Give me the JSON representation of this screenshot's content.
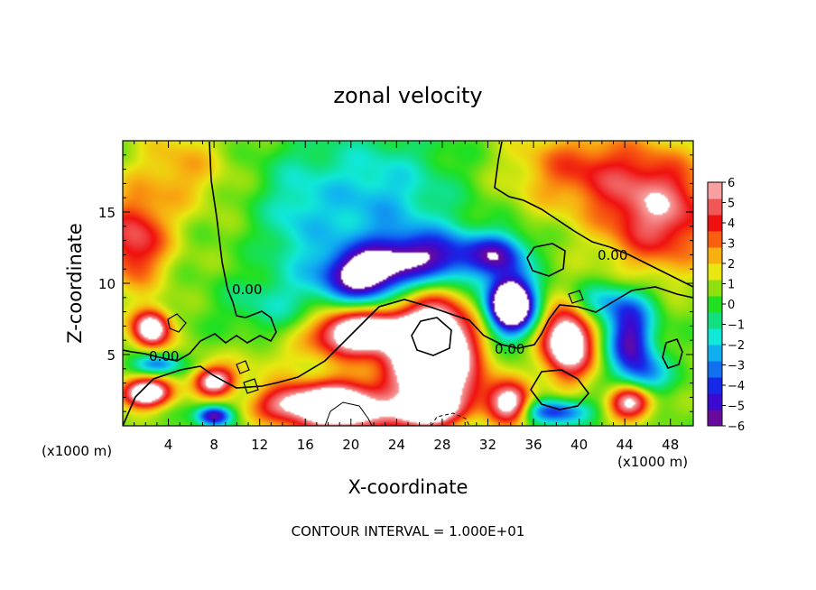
{
  "chart_data": {
    "type": "heatmap",
    "title": "zonal velocity",
    "xlabel": "X-coordinate",
    "ylabel": "Z-coordinate",
    "x_unit_left": "(x1000 m)",
    "x_unit_right": "(x1000 m)",
    "xlim": [
      0,
      50
    ],
    "ylim": [
      0,
      20
    ],
    "x_ticks": [
      4,
      8,
      12,
      16,
      20,
      24,
      28,
      32,
      36,
      40,
      44,
      48
    ],
    "x_tick_labels": [
      "4",
      "8",
      "12",
      "16",
      "20",
      "24",
      "28",
      "32",
      "36",
      "40",
      "44",
      "48"
    ],
    "y_ticks": [
      5,
      10,
      15
    ],
    "y_tick_labels": [
      "5",
      "10",
      "15"
    ],
    "colorbar": {
      "min": -6,
      "max": 6,
      "ticks": [
        6,
        5,
        4,
        3,
        2,
        1,
        0,
        -1,
        -2,
        -3,
        -4,
        -5,
        -6
      ],
      "tick_labels": [
        "6",
        "5",
        "4",
        "3",
        "2",
        "1",
        "0",
        "−1",
        "−2",
        "−3",
        "−4",
        "−5",
        "−6"
      ],
      "colors": [
        "#6a0a9c",
        "#3a0ad0",
        "#1828e8",
        "#1070f0",
        "#10b0f0",
        "#10e8d8",
        "#10e080",
        "#20e020",
        "#90e010",
        "#e8e810",
        "#f8b010",
        "#f86010",
        "#f01010",
        "#f05858",
        "#f8a0a0"
      ]
    },
    "contour_labels": [
      "0.00",
      "0.00",
      "0.00",
      "0.00"
    ],
    "footer": "CONTOUR INTERVAL = 1.000E+01",
    "features": [
      {
        "x": 1.0,
        "z": 13.0,
        "value": 4.5,
        "sx": 3.0,
        "sz": 3.2
      },
      {
        "x": 2.5,
        "z": 6.8,
        "value": 7.5,
        "sx": 1.6,
        "sz": 1.3
      },
      {
        "x": 2.0,
        "z": 2.3,
        "value": 8.0,
        "sx": 2.2,
        "sz": 1.0
      },
      {
        "x": 3.0,
        "z": 4.3,
        "value": -4.0,
        "sx": 2.0,
        "sz": 0.7
      },
      {
        "x": 8.0,
        "z": 3.1,
        "value": 6.5,
        "sx": 1.8,
        "sz": 1.0
      },
      {
        "x": 8.0,
        "z": 0.7,
        "value": -6.5,
        "sx": 1.5,
        "sz": 0.7
      },
      {
        "x": 14.0,
        "z": 1.5,
        "value": 4.0,
        "sx": 3.0,
        "sz": 1.3
      },
      {
        "x": 19.0,
        "z": 1.3,
        "value": 9.0,
        "sx": 4.0,
        "sz": 1.8
      },
      {
        "x": 20.5,
        "z": 6.5,
        "value": 8.0,
        "sx": 3.8,
        "sz": 1.6
      },
      {
        "x": 27.0,
        "z": 5.3,
        "value": 12.0,
        "sx": 3.6,
        "sz": 3.3
      },
      {
        "x": 26.5,
        "z": 1.0,
        "value": 7.0,
        "sx": 3.0,
        "sz": 1.2
      },
      {
        "x": 34.0,
        "z": 1.5,
        "value": 6.5,
        "sx": 1.8,
        "sz": 1.4
      },
      {
        "x": 39.0,
        "z": 6.0,
        "value": 8.5,
        "sx": 2.2,
        "sz": 2.6
      },
      {
        "x": 44.5,
        "z": 1.7,
        "value": 6.5,
        "sx": 1.9,
        "sz": 1.2
      },
      {
        "x": 34.0,
        "z": 8.5,
        "value": -12.0,
        "sx": 2.0,
        "sz": 1.9
      },
      {
        "x": 21.0,
        "z": 10.5,
        "value": -7.0,
        "sx": 3.5,
        "sz": 1.8
      },
      {
        "x": 27.0,
        "z": 11.8,
        "value": -5.5,
        "sx": 5.0,
        "sz": 1.8
      },
      {
        "x": 22.0,
        "z": 15.5,
        "value": -3.0,
        "sx": 7.0,
        "sz": 5.0
      },
      {
        "x": 33.0,
        "z": 12.0,
        "value": -4.5,
        "sx": 2.5,
        "sz": 1.5
      },
      {
        "x": 44.5,
        "z": 6.0,
        "value": -6.0,
        "sx": 2.0,
        "sz": 2.5
      },
      {
        "x": 42.0,
        "z": 8.5,
        "value": -3.0,
        "sx": 4.0,
        "sz": 1.5
      },
      {
        "x": 38.0,
        "z": 1.0,
        "value": -5.0,
        "sx": 3.0,
        "sz": 0.9
      },
      {
        "x": 46.0,
        "z": 3.5,
        "value": -3.0,
        "sx": 2.0,
        "sz": 1.5
      },
      {
        "x": 15.0,
        "z": 14.0,
        "value": -1.5,
        "sx": 3.0,
        "sz": 5.0
      },
      {
        "x": 47.0,
        "z": 15.0,
        "value": 5.0,
        "sx": 5.0,
        "sz": 4.0
      },
      {
        "x": 40.0,
        "z": 18.0,
        "value": 3.0,
        "sx": 6.0,
        "sz": 3.0
      },
      {
        "x": 5.0,
        "z": 18.0,
        "value": 2.0,
        "sx": 4.0,
        "sz": 3.0
      },
      {
        "x": 12.5,
        "z": 8.5,
        "value": -1.5,
        "sx": 4.0,
        "sz": 2.0
      },
      {
        "x": 13.0,
        "z": 4.5,
        "value": 1.0,
        "sx": 5.0,
        "sz": 1.5
      },
      {
        "x": 31.0,
        "z": 2.5,
        "value": 2.0,
        "sx": 3.0,
        "sz": 1.5
      }
    ]
  }
}
